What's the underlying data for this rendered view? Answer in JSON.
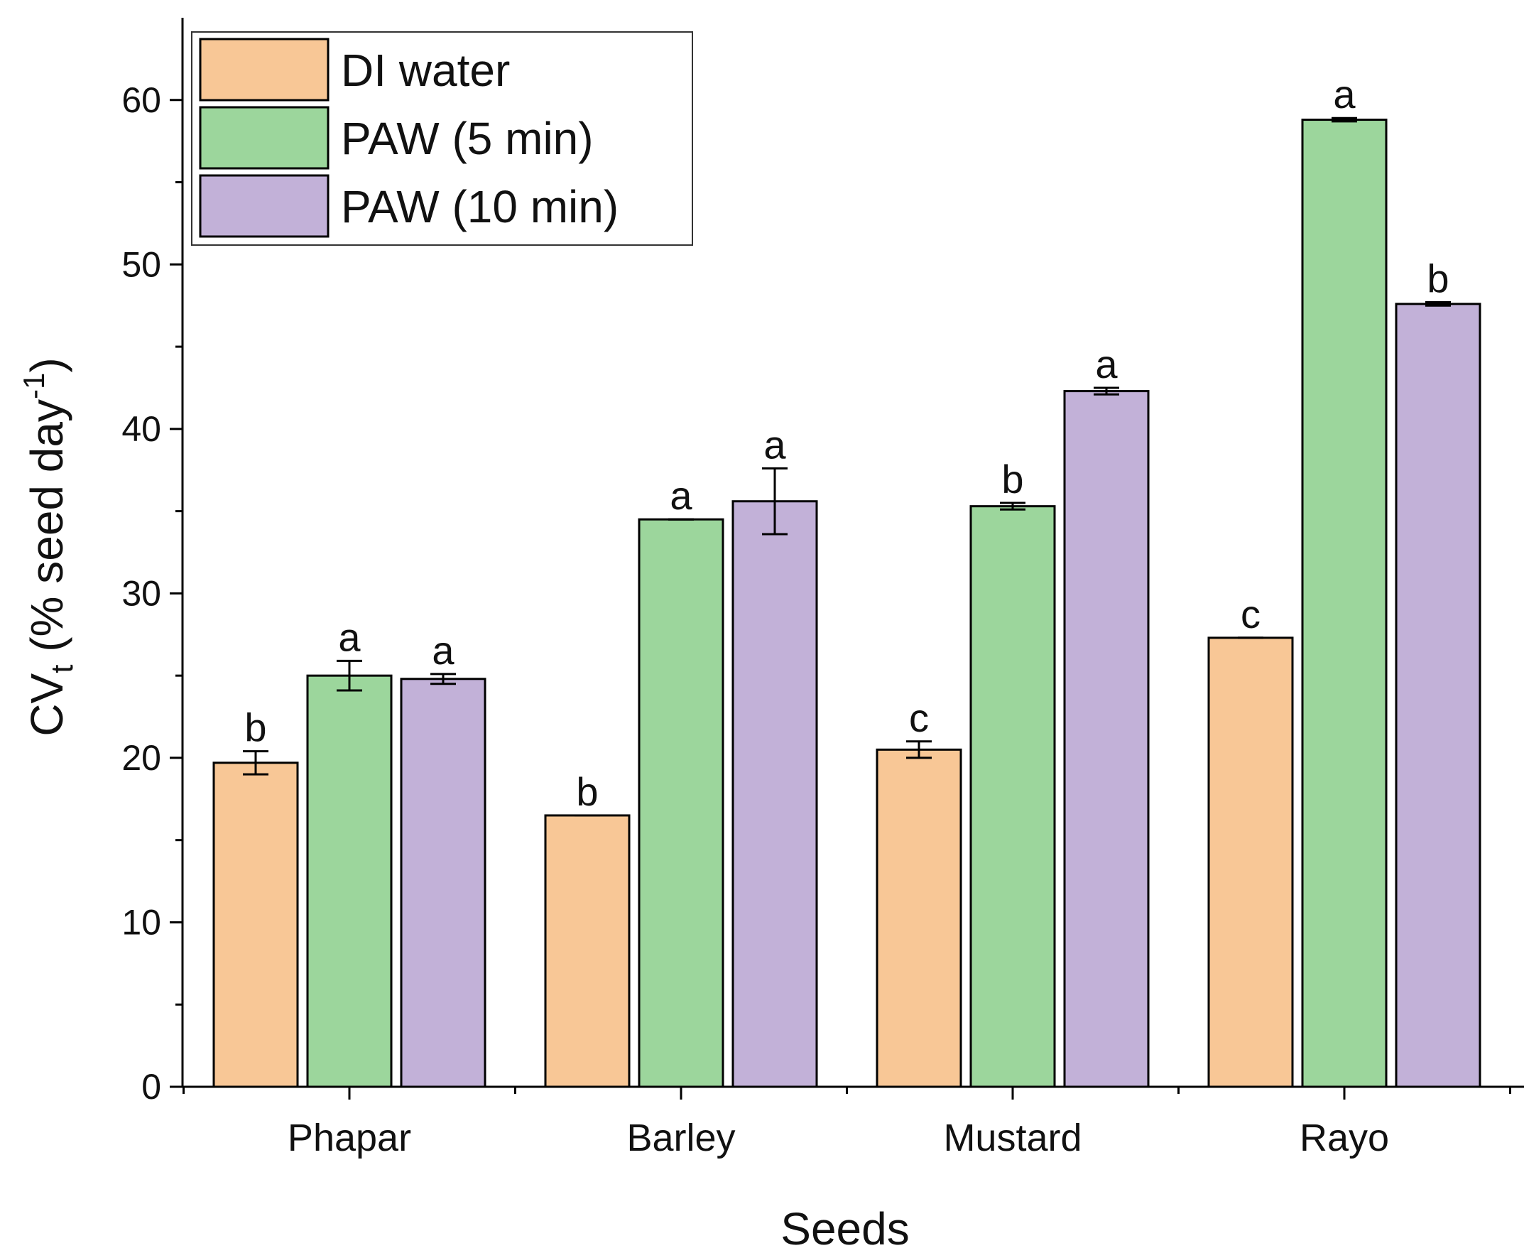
{
  "chart_data": {
    "type": "bar",
    "title": "",
    "xlabel": "Seeds",
    "ylabel": {
      "main": "CV",
      "subscript": "t",
      "unit_open": " (% seed day",
      "unit_superscript": "-1",
      "unit_close": ")"
    },
    "ylim": [
      0,
      65
    ],
    "yticks": [
      "0",
      "10",
      "20",
      "30",
      "40",
      "50",
      "60"
    ],
    "categories": [
      "Phapar",
      "Barley",
      "Mustard",
      "Rayo"
    ],
    "legend_position": "top-left",
    "series": [
      {
        "name": "DI water",
        "color": "#f8c796",
        "values": [
          19.7,
          16.5,
          20.5,
          27.3
        ],
        "errors": [
          0.7,
          0.0,
          0.5,
          0.0
        ],
        "letters": [
          "b",
          "b",
          "c",
          "c"
        ]
      },
      {
        "name": "PAW (5 min)",
        "color": "#9cd69c",
        "values": [
          25.0,
          34.5,
          35.3,
          58.8
        ],
        "errors": [
          0.9,
          0.0,
          0.2,
          0.1
        ],
        "letters": [
          "a",
          "a",
          "b",
          "a"
        ]
      },
      {
        "name": "PAW (10 min)",
        "color": "#c2b1d8",
        "values": [
          24.8,
          35.6,
          42.3,
          47.6
        ],
        "errors": [
          0.3,
          2.0,
          0.2,
          0.1
        ],
        "letters": [
          "a",
          "a",
          "a",
          "b"
        ]
      }
    ]
  }
}
